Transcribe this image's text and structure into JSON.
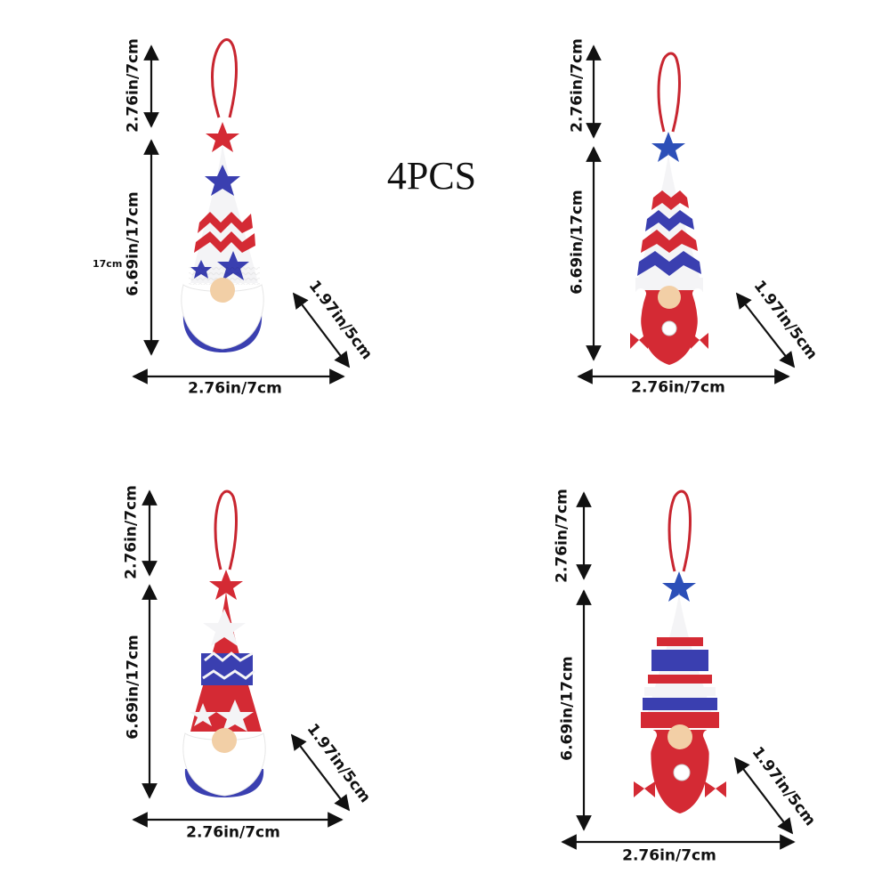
{
  "title": "4PCS",
  "side_label": "17cm",
  "gnomes": [
    {
      "name": "gnome-boy-star-zigzag",
      "hanger_label": "2.76in/7cm",
      "height_label": "6.69in/17cm",
      "width_label": "2.76in/7cm",
      "depth_label": "1.97in/5cm",
      "star_color": "#d42a34",
      "type": "beard"
    },
    {
      "name": "gnome-girl-zigzag",
      "hanger_label": "2.76in/7cm",
      "height_label": "6.69in/17cm",
      "width_label": "2.76in/7cm",
      "depth_label": "1.97in/5cm",
      "star_color": "#2c4fb8",
      "type": "braids"
    },
    {
      "name": "gnome-boy-star-band",
      "hanger_label": "2.76in/7cm",
      "height_label": "6.69in/17cm",
      "width_label": "2.76in/7cm",
      "depth_label": "1.97in/5cm",
      "star_color": "#d42a34",
      "type": "beard"
    },
    {
      "name": "gnome-girl-stripes",
      "hanger_label": "2.76in/7cm",
      "height_label": "6.69in/17cm",
      "width_label": "2.76in/7cm",
      "depth_label": "1.97in/5cm",
      "star_color": "#2c4fb8",
      "type": "braids"
    }
  ],
  "colors": {
    "red": "#d42a34",
    "blue": "#3a3fb0",
    "white": "#f7f7f7",
    "skin": "#f2cfa6"
  }
}
